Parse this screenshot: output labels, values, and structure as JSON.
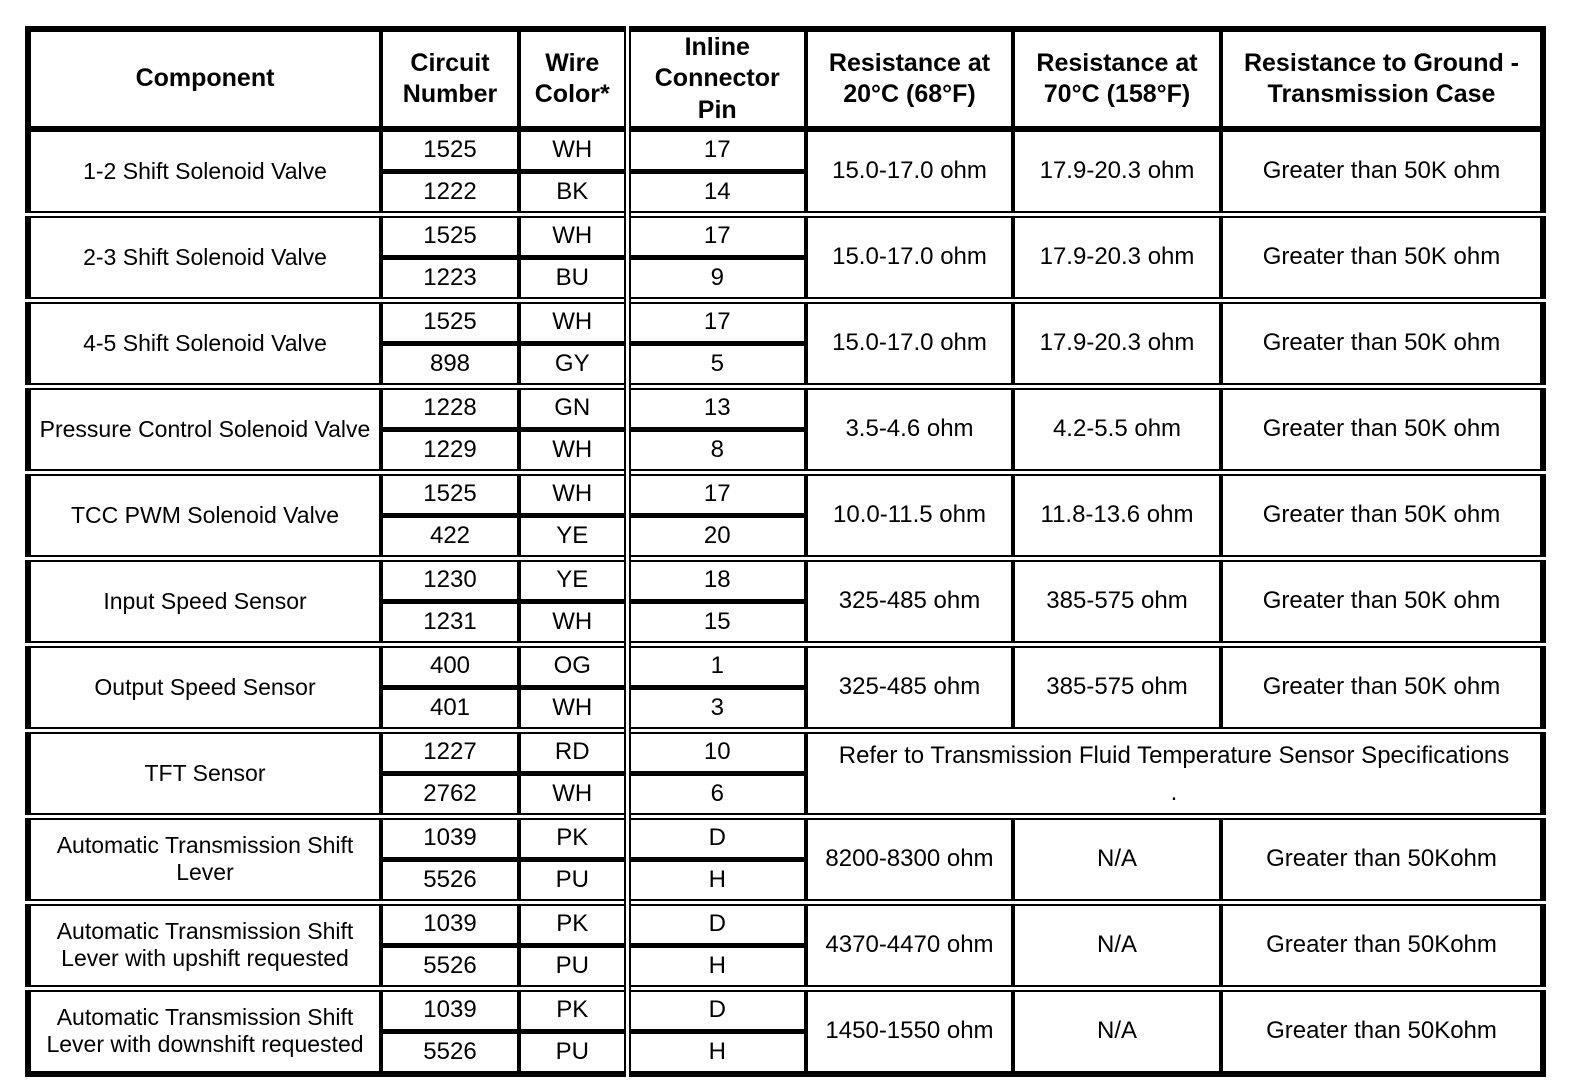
{
  "colors": {
    "border": "#000000",
    "background": "#ffffff",
    "text": "#000000"
  },
  "table": {
    "headers": [
      "Component",
      "Circuit Number",
      "Wire Color*",
      "Inline Connector Pin",
      "Resistance at 20°C (68°F)",
      "Resistance at 70°C (158°F)",
      "Resistance to Ground - Transmission Case"
    ],
    "rows": [
      {
        "component": "1-2 Shift Solenoid Valve",
        "circuits": [
          {
            "circuit": "1525",
            "wire": "WH",
            "pin": "17"
          },
          {
            "circuit": "1222",
            "wire": "BK",
            "pin": "14"
          }
        ],
        "r20": "15.0-17.0 ohm",
        "r70": "17.9-20.3 ohm",
        "ground": "Greater than 50K ohm"
      },
      {
        "component": "2-3 Shift Solenoid Valve",
        "circuits": [
          {
            "circuit": "1525",
            "wire": "WH",
            "pin": "17"
          },
          {
            "circuit": "1223",
            "wire": "BU",
            "pin": "9"
          }
        ],
        "r20": "15.0-17.0 ohm",
        "r70": "17.9-20.3 ohm",
        "ground": "Greater than 50K ohm"
      },
      {
        "component": "4-5 Shift Solenoid Valve",
        "circuits": [
          {
            "circuit": "1525",
            "wire": "WH",
            "pin": "17"
          },
          {
            "circuit": "898",
            "wire": "GY",
            "pin": "5"
          }
        ],
        "r20": "15.0-17.0 ohm",
        "r70": "17.9-20.3 ohm",
        "ground": "Greater than 50K ohm"
      },
      {
        "component": "Pressure Control Solenoid Valve",
        "circuits": [
          {
            "circuit": "1228",
            "wire": "GN",
            "pin": "13"
          },
          {
            "circuit": "1229",
            "wire": "WH",
            "pin": "8"
          }
        ],
        "r20": "3.5-4.6 ohm",
        "r70": "4.2-5.5 ohm",
        "ground": "Greater than 50K ohm"
      },
      {
        "component": "TCC PWM Solenoid Valve",
        "circuits": [
          {
            "circuit": "1525",
            "wire": "WH",
            "pin": "17"
          },
          {
            "circuit": "422",
            "wire": "YE",
            "pin": "20"
          }
        ],
        "r20": "10.0-11.5 ohm",
        "r70": "11.8-13.6 ohm",
        "ground": "Greater than 50K ohm"
      },
      {
        "component": "Input Speed Sensor",
        "circuits": [
          {
            "circuit": "1230",
            "wire": "YE",
            "pin": "18"
          },
          {
            "circuit": "1231",
            "wire": "WH",
            "pin": "15"
          }
        ],
        "r20": "325-485 ohm",
        "r70": "385-575 ohm",
        "ground": "Greater than 50K ohm"
      },
      {
        "component": "Output Speed Sensor",
        "circuits": [
          {
            "circuit": "400",
            "wire": "OG",
            "pin": "1"
          },
          {
            "circuit": "401",
            "wire": "WH",
            "pin": "3"
          }
        ],
        "r20": "325-485 ohm",
        "r70": "385-575 ohm",
        "ground": "Greater than 50K ohm"
      },
      {
        "component": "TFT Sensor",
        "circuits": [
          {
            "circuit": "1227",
            "wire": "RD",
            "pin": "10"
          },
          {
            "circuit": "2762",
            "wire": "WH",
            "pin": "6"
          }
        ],
        "merged_note": "Refer to Transmission Fluid Temperature Sensor Specifications",
        "merged_note_dot": "."
      },
      {
        "component": "Automatic Transmission Shift Lever",
        "circuits": [
          {
            "circuit": "1039",
            "wire": "PK",
            "pin": "D"
          },
          {
            "circuit": "5526",
            "wire": "PU",
            "pin": "H"
          }
        ],
        "r20": "8200-8300 ohm",
        "r70": "N/A",
        "ground": "Greater than 50Kohm"
      },
      {
        "component": "Automatic Transmission Shift Lever with upshift requested",
        "circuits": [
          {
            "circuit": "1039",
            "wire": "PK",
            "pin": "D"
          },
          {
            "circuit": "5526",
            "wire": "PU",
            "pin": "H"
          }
        ],
        "r20": "4370-4470 ohm",
        "r70": "N/A",
        "ground": "Greater than 50Kohm"
      },
      {
        "component": "Automatic Transmission Shift Lever with downshift requested",
        "circuits": [
          {
            "circuit": "1039",
            "wire": "PK",
            "pin": "D"
          },
          {
            "circuit": "5526",
            "wire": "PU",
            "pin": "H"
          }
        ],
        "r20": "1450-1550 ohm",
        "r70": "N/A",
        "ground": "Greater than 50Kohm"
      }
    ]
  }
}
